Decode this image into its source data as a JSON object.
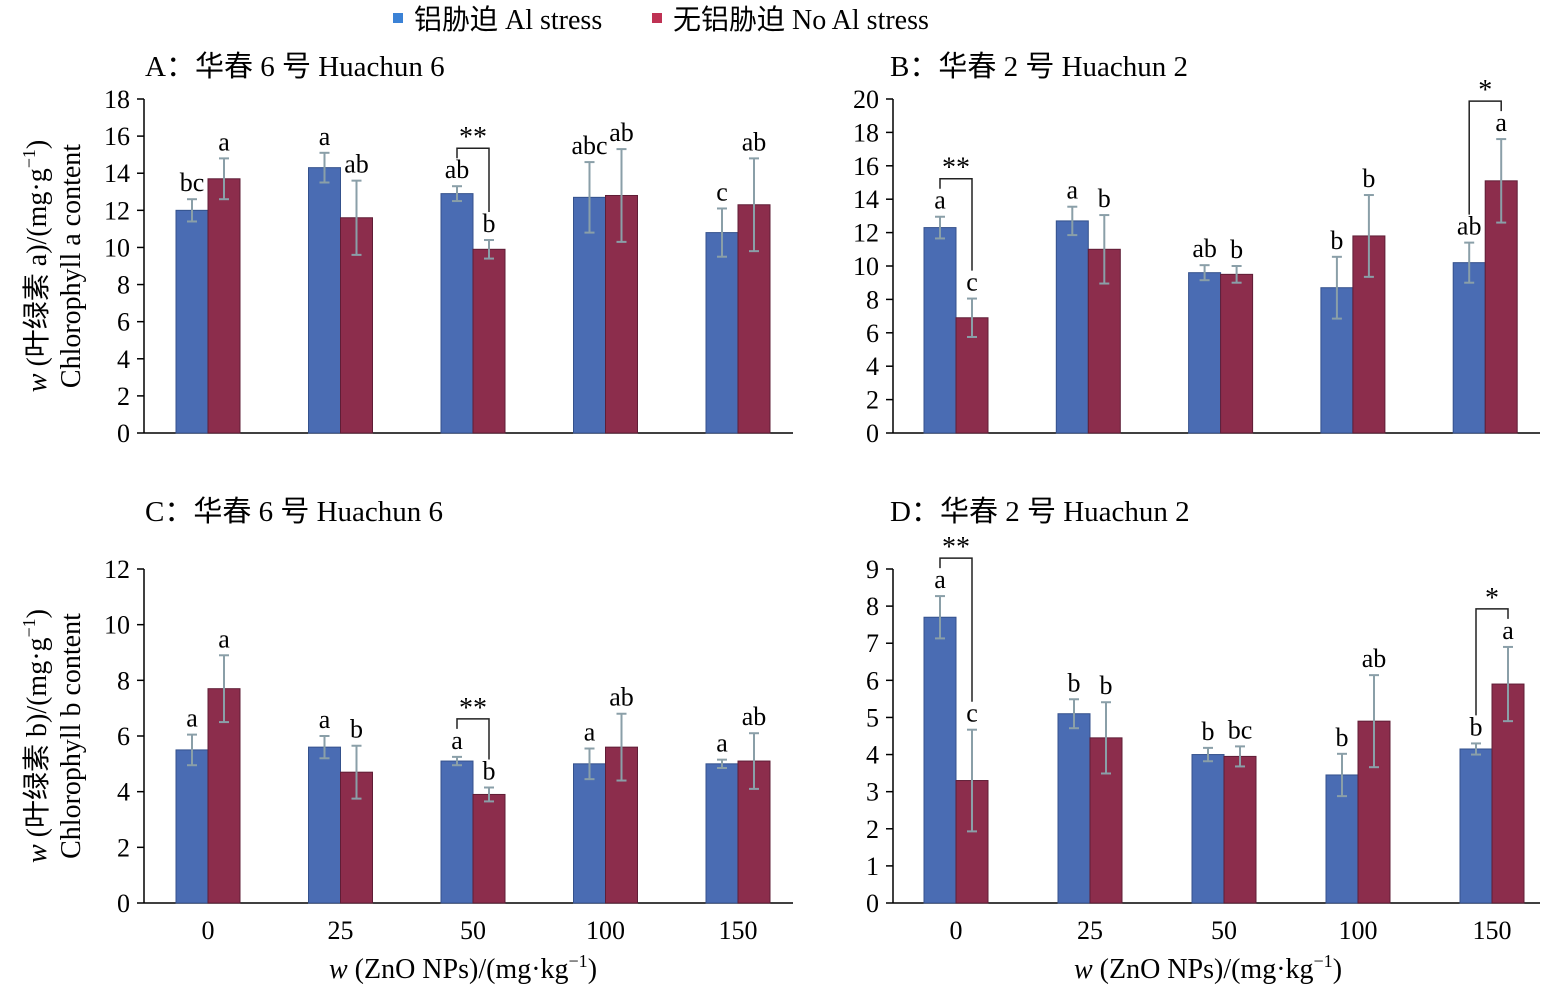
{
  "legend": {
    "position": "top",
    "items": [
      {
        "label": "铝胁迫 Al stress",
        "color": "#3b82d6"
      },
      {
        "label": "无铝胁迫 No Al stress",
        "color": "#bf3254"
      }
    ]
  },
  "chart_data": [
    {
      "type": "bar",
      "title": "A：华春 6 号 Huachun 6",
      "ylabel": {
        "var": "w",
        "text": " (叶绿素 a)/(mg·g",
        "sup": "−1",
        "close": ")",
        "line2": "Chlorophyll a content"
      },
      "categories": [
        0,
        25,
        50,
        100,
        150
      ],
      "ylim": [
        0,
        18
      ],
      "yticks": [
        0,
        2,
        4,
        6,
        8,
        10,
        12,
        14,
        16,
        18
      ],
      "grid": false,
      "series": [
        {
          "name": "铝胁迫 Al stress",
          "color": "#4a6cb3",
          "values": [
            12.0,
            14.3,
            12.9,
            12.7,
            10.8
          ],
          "errors": [
            0.6,
            0.8,
            0.4,
            1.9,
            1.3
          ],
          "letters": [
            "bc",
            "a",
            "ab",
            "abc",
            "c"
          ]
        },
        {
          "name": "无铝胁迫 No Al stress",
          "color": "#8c2d4c",
          "values": [
            13.7,
            11.6,
            9.9,
            12.8,
            12.3
          ],
          "errors": [
            1.1,
            2.0,
            0.5,
            2.5,
            2.5
          ],
          "letters": [
            "a",
            "ab",
            "b",
            "ab",
            "ab"
          ]
        }
      ],
      "significance": [
        {
          "category_index": 2,
          "label": "**"
        }
      ]
    },
    {
      "type": "bar",
      "title": "B：华春 2 号 Huachun 2",
      "categories": [
        0,
        25,
        50,
        100,
        150
      ],
      "ylim": [
        0,
        20
      ],
      "yticks": [
        0,
        2,
        4,
        6,
        8,
        10,
        12,
        14,
        16,
        18,
        20
      ],
      "grid": false,
      "series": [
        {
          "name": "铝胁迫 Al stress",
          "color": "#4a6cb3",
          "values": [
            12.3,
            12.7,
            9.6,
            8.7,
            10.2
          ],
          "errors": [
            0.65,
            0.85,
            0.45,
            1.85,
            1.2
          ],
          "letters": [
            "a",
            "a",
            "ab",
            "b",
            "ab"
          ]
        },
        {
          "name": "无铝胁迫 No Al stress",
          "color": "#8c2d4c",
          "values": [
            6.9,
            11.0,
            9.5,
            11.8,
            15.1
          ],
          "errors": [
            1.15,
            2.05,
            0.5,
            2.45,
            2.5
          ],
          "letters": [
            "c",
            "b",
            "b",
            "b",
            "a"
          ]
        }
      ],
      "significance": [
        {
          "category_index": 0,
          "label": "**"
        },
        {
          "category_index": 4,
          "label": "*"
        }
      ]
    },
    {
      "type": "bar",
      "title": "C：华春 6 号 Huachun 6",
      "ylabel": {
        "var": "w",
        "text": " (叶绿素 b)/(mg·g",
        "sup": "−1",
        "close": ")",
        "line2": "Chlorophyll b content"
      },
      "xlabel": {
        "var": "w",
        "text": " (ZnO NPs)/(mg·kg",
        "sup": "−1",
        "close": ")"
      },
      "categories": [
        0,
        25,
        50,
        100,
        150
      ],
      "ylim": [
        0,
        12
      ],
      "yticks": [
        0,
        2,
        4,
        6,
        8,
        10,
        12
      ],
      "grid": false,
      "series": [
        {
          "name": "铝胁迫 Al stress",
          "color": "#4a6cb3",
          "values": [
            5.5,
            5.6,
            5.1,
            5.0,
            5.0
          ],
          "errors": [
            0.55,
            0.4,
            0.15,
            0.55,
            0.15
          ],
          "letters": [
            "a",
            "a",
            "a",
            "a",
            "a"
          ]
        },
        {
          "name": "无铝胁迫 No Al stress",
          "color": "#8c2d4c",
          "values": [
            7.7,
            4.7,
            3.9,
            5.6,
            5.1
          ],
          "errors": [
            1.2,
            0.95,
            0.25,
            1.2,
            1.0
          ],
          "letters": [
            "a",
            "b",
            "b",
            "ab",
            "ab"
          ]
        }
      ],
      "significance": [
        {
          "category_index": 2,
          "label": "**"
        }
      ]
    },
    {
      "type": "bar",
      "title": "D：华春 2 号 Huachun 2",
      "xlabel": {
        "var": "w",
        "text": " (ZnO NPs)/(mg·kg",
        "sup": "−1",
        "close": ")"
      },
      "categories": [
        0,
        25,
        50,
        100,
        150
      ],
      "ylim": [
        0,
        9
      ],
      "yticks": [
        0,
        1,
        2,
        3,
        4,
        5,
        6,
        7,
        8,
        9
      ],
      "grid": false,
      "series": [
        {
          "name": "铝胁迫 Al stress",
          "color": "#4a6cb3",
          "values": [
            7.7,
            5.1,
            4.0,
            3.45,
            4.15
          ],
          "errors": [
            0.57,
            0.39,
            0.18,
            0.57,
            0.15
          ],
          "letters": [
            "a",
            "b",
            "b",
            "b",
            "b"
          ]
        },
        {
          "name": "无铝胁迫 No Al stress",
          "color": "#8c2d4c",
          "values": [
            3.3,
            4.45,
            3.95,
            4.9,
            5.9
          ],
          "errors": [
            1.37,
            0.96,
            0.27,
            1.24,
            1.0
          ],
          "letters": [
            "c",
            "b",
            "bc",
            "ab",
            "a"
          ]
        }
      ],
      "significance": [
        {
          "category_index": 0,
          "label": "**"
        },
        {
          "category_index": 4,
          "label": "*"
        }
      ]
    }
  ]
}
